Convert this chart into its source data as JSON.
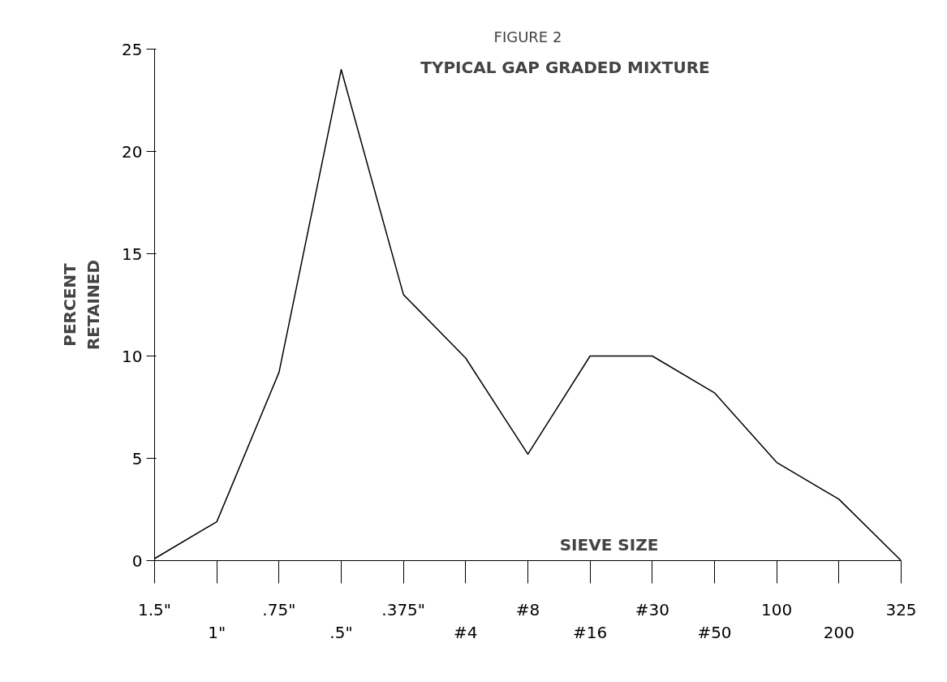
{
  "chart_data": {
    "type": "line",
    "title": "FIGURE 2",
    "subtitle": "TYPICAL GAP GRADED MIXTURE",
    "xlabel": "SIEVE SIZE",
    "ylabel": "PERCENT RETAINED",
    "categories": [
      "1.5\"",
      "1\"",
      ".75\"",
      ".5\"",
      ".375\"",
      "#4",
      "#8",
      "#16",
      "#30",
      "#50",
      "100",
      "200",
      "325"
    ],
    "series": [
      {
        "color": "#000000",
        "values": [
          0.1,
          1.9,
          9.2,
          24,
          13,
          9.9,
          5.2,
          10,
          10,
          8.2,
          4.8,
          3.0,
          0
        ]
      }
    ],
    "ylim": [
      0,
      25
    ],
    "yticks": [
      0,
      5,
      10,
      15,
      20,
      25
    ],
    "grid": false,
    "marker": "none",
    "line_style": "solid"
  }
}
